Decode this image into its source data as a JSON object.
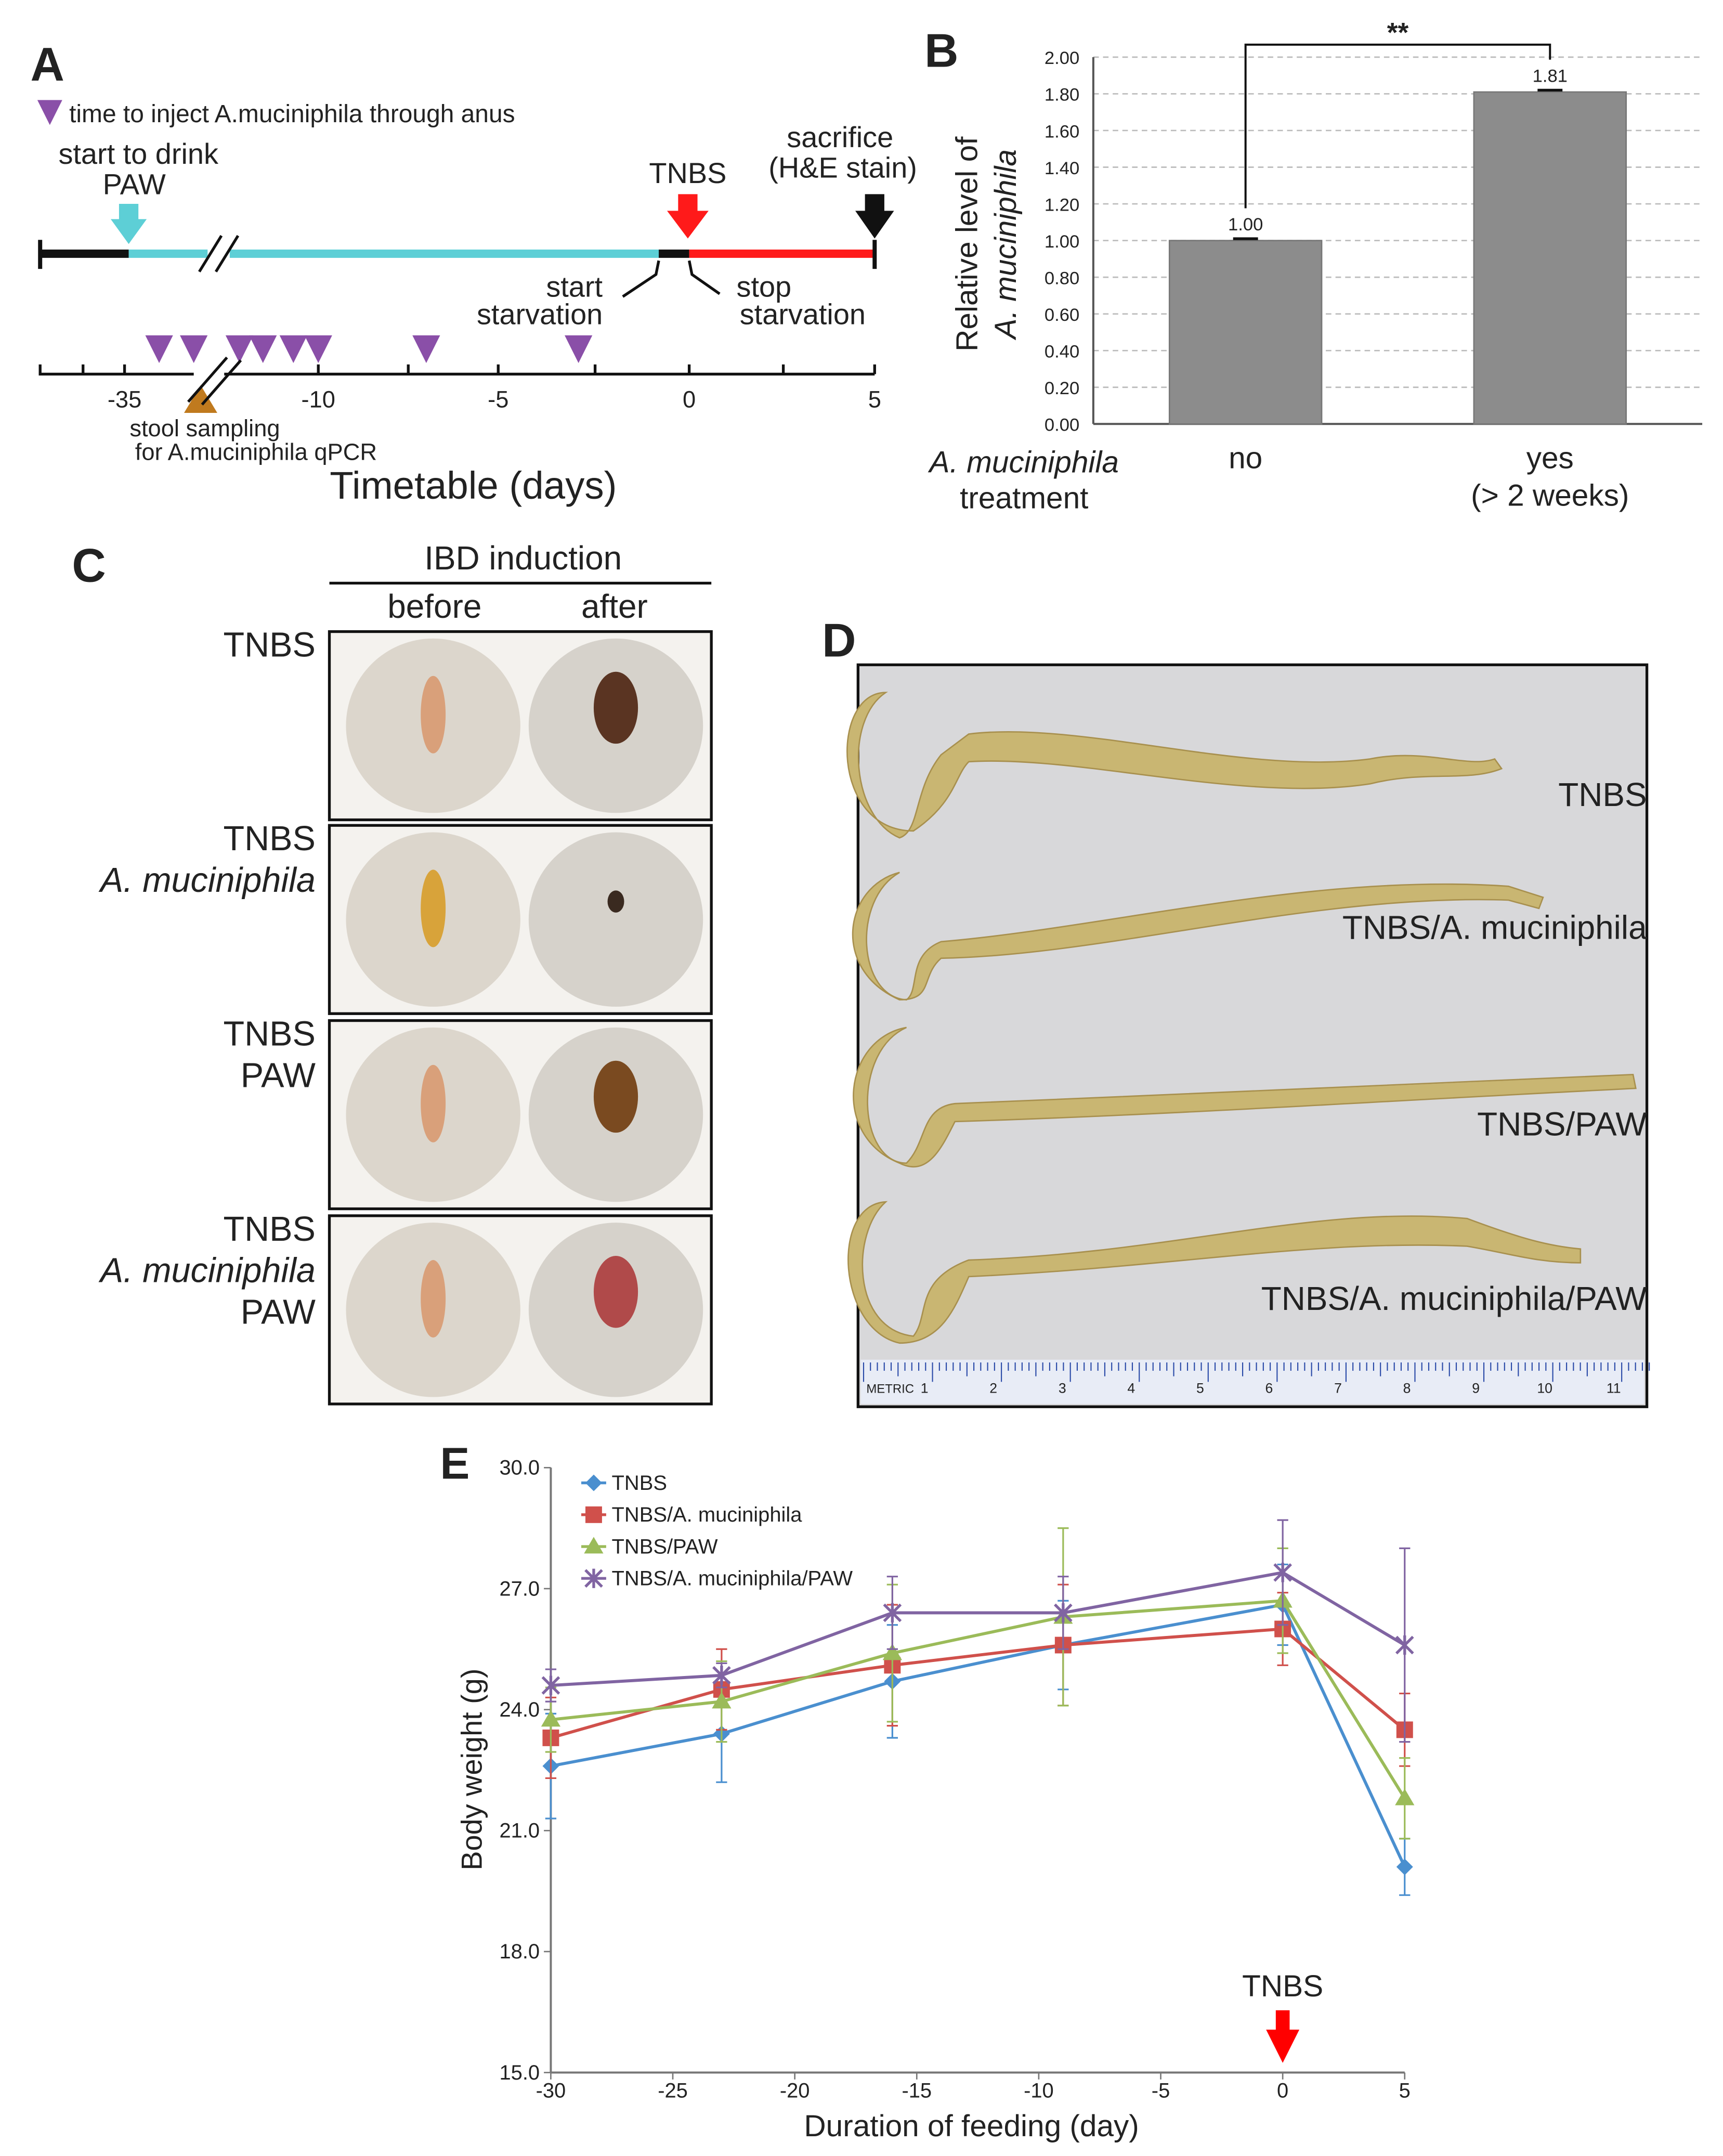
{
  "panel_a": {
    "letter": "A",
    "legend": "time to inject A.muciniphila through anus",
    "start_drink": [
      "start to drink",
      "PAW"
    ],
    "tnbs": "TNBS",
    "sacrifice": [
      "sacrifice",
      "(H&E stain)"
    ],
    "start_starvation": [
      "start",
      "starvation"
    ],
    "stop_starvation": [
      "stop",
      "starvation"
    ],
    "ticks": [
      -35,
      -10,
      -5,
      0,
      5
    ],
    "stool": [
      "stool sampling",
      "for A.muciniphila qPCR"
    ],
    "axis_title": "Timetable (days)"
  },
  "panel_c": {
    "letter": "C",
    "header": "IBD induction",
    "cols": [
      "before",
      "after"
    ],
    "rows": [
      [
        "TNBS"
      ],
      [
        "TNBS",
        "A. muciniphila"
      ],
      [
        "TNBS",
        "PAW"
      ],
      [
        "TNBS",
        "A. muciniphila",
        "PAW"
      ]
    ]
  },
  "panel_d": {
    "letter": "D",
    "labels": [
      "TNBS",
      "TNBS/A. muciniphila",
      "TNBS/PAW",
      "TNBS/A. muciniphila/PAW"
    ],
    "ruler": "METRIC",
    "ruler_numbers": [
      1,
      2,
      3,
      4,
      5,
      6,
      7,
      8,
      9,
      10,
      11
    ]
  },
  "chart_data": [
    {
      "type": "bar",
      "letter": "B",
      "categories": [
        [
          "no"
        ],
        [
          "yes",
          "(> 2 weeks)"
        ]
      ],
      "values": [
        1.0,
        1.81
      ],
      "value_labels": [
        "1.00",
        "1.81"
      ],
      "errors": [
        0.01,
        0.01
      ],
      "color": "#8c8c8c",
      "ylim": [
        0,
        2
      ],
      "yticks": [
        {
          "value": 0,
          "label": "0.00"
        },
        {
          "value": 0.2,
          "label": "0.20"
        },
        {
          "value": 0.4,
          "label": "0.40"
        },
        {
          "value": 0.6,
          "label": "0.60"
        },
        {
          "value": 0.8,
          "label": "0.80"
        },
        {
          "value": 1,
          "label": "1.00"
        },
        {
          "value": 1.2,
          "label": "1.20"
        },
        {
          "value": 1.4,
          "label": "1.40"
        },
        {
          "value": 1.6,
          "label": "1.60"
        },
        {
          "value": 1.8,
          "label": "1.80"
        },
        {
          "value": 2,
          "label": "2.00"
        }
      ],
      "grid": true,
      "ylabel": [
        "Relative level of",
        "A. muciniphila"
      ],
      "xlabel": [
        "A. muciniphila",
        "treatment"
      ],
      "significance": "**"
    },
    {
      "type": "line",
      "letter": "E",
      "x": [
        -30,
        -23,
        -16,
        -9,
        0,
        5
      ],
      "xlim": [
        -30,
        5
      ],
      "xticks": [
        -30,
        -25,
        -20,
        -15,
        -10,
        -5,
        0,
        5
      ],
      "ylim": [
        15,
        30
      ],
      "yticks": [
        {
          "value": 15,
          "label": "15.0"
        },
        {
          "value": 18,
          "label": "18.0"
        },
        {
          "value": 21,
          "label": "21.0"
        },
        {
          "value": 24,
          "label": "24.0"
        },
        {
          "value": 27,
          "label": "27.0"
        },
        {
          "value": 30,
          "label": "30.0"
        }
      ],
      "xlabel": "Duration of feeding (day)",
      "ylabel": "Body weight (g)",
      "legend": "upper left",
      "annotation": {
        "text": "TNBS",
        "x": 0,
        "color": "#ff0000"
      },
      "series": [
        {
          "name": "TNBS",
          "color": "#4a8fcf",
          "marker": "diamond",
          "values": [
            22.6,
            23.4,
            24.7,
            25.6,
            26.6,
            20.1
          ],
          "errors": [
            1.3,
            1.2,
            1.4,
            1.1,
            1.0,
            0.7
          ]
        },
        {
          "name": "TNBS/A. muciniphila",
          "color": "#d0504b",
          "marker": "square",
          "values": [
            23.3,
            24.5,
            25.1,
            25.6,
            26.0,
            23.5
          ],
          "errors": [
            1.0,
            1.0,
            1.5,
            1.5,
            0.9,
            0.9
          ]
        },
        {
          "name": "TNBS/PAW",
          "color": "#9bbb59",
          "marker": "triangle",
          "values": [
            23.75,
            24.2,
            25.4,
            26.3,
            26.7,
            21.8
          ],
          "errors": [
            0.8,
            1.0,
            1.7,
            2.2,
            1.3,
            1.0
          ]
        },
        {
          "name": "TNBS/A. muciniphila/PAW",
          "color": "#8064a2",
          "marker": "x",
          "values": [
            24.6,
            24.85,
            26.4,
            26.4,
            27.4,
            25.6
          ],
          "errors": [
            0.4,
            0.3,
            0.9,
            0.9,
            1.3,
            2.4
          ]
        }
      ]
    }
  ]
}
